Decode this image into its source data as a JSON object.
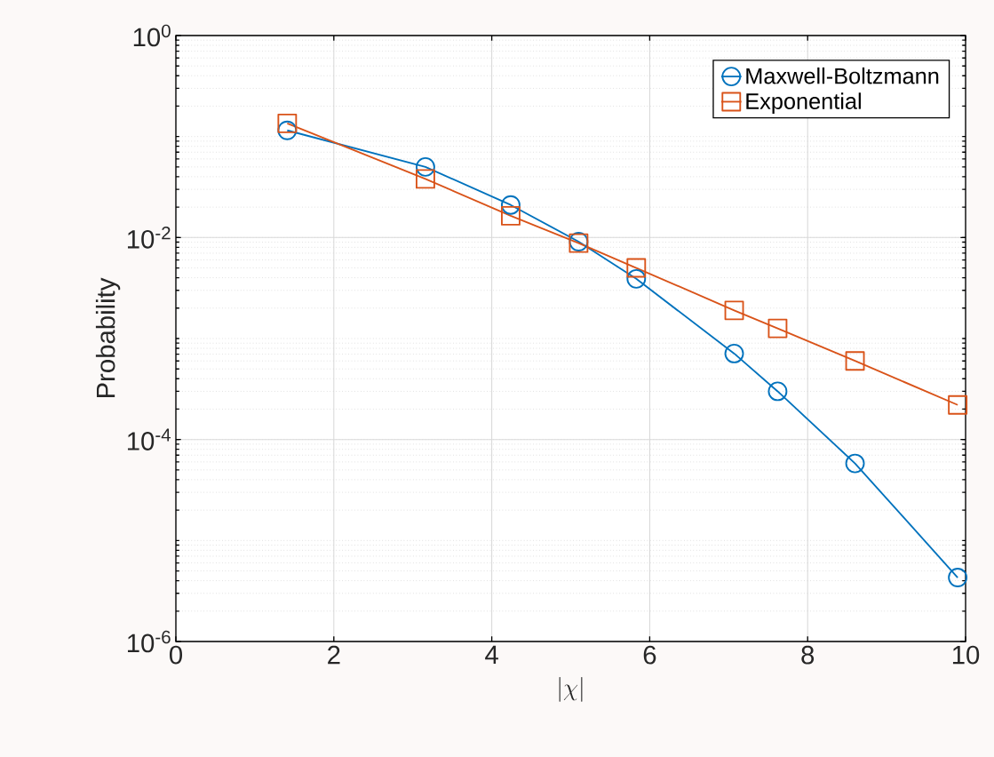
{
  "chart_data": {
    "type": "line",
    "xlabel": "|\\chi|",
    "ylabel": "Probability",
    "log": "y",
    "xlim": [
      0,
      10
    ],
    "xticks": [
      0,
      2,
      4,
      6,
      8,
      10
    ],
    "ylim": [
      1e-06,
      1
    ],
    "yticks": [
      {
        "value": 1e-06,
        "label": "10$^{-6}$"
      },
      {
        "value": 0.0001,
        "label": "10$^{-4}$"
      },
      {
        "value": 0.01,
        "label": "10$^{-2}$"
      },
      {
        "value": 1,
        "label": "10$^{0}$"
      }
    ],
    "grid": true,
    "legend": "top right",
    "line_style": "solid",
    "series": [
      {
        "name": "Maxwell-Boltzmann",
        "color": "#0072bd",
        "marker": "circle",
        "x": [
          1.41,
          3.16,
          4.24,
          5.1,
          5.83,
          7.07,
          7.62,
          8.6,
          9.9
        ],
        "values": [
          0.115,
          0.05,
          0.021,
          0.0091,
          0.0039,
          0.00071,
          0.0003,
          5.8e-05,
          4.3e-06
        ]
      },
      {
        "name": "Exponential",
        "color": "#d95319",
        "marker": "square",
        "x": [
          1.41,
          3.16,
          4.24,
          5.1,
          5.83,
          7.07,
          7.62,
          8.6,
          9.9
        ],
        "values": [
          0.135,
          0.038,
          0.0164,
          0.0088,
          0.005,
          0.0019,
          0.00126,
          0.0006,
          0.00022
        ]
      }
    ]
  }
}
